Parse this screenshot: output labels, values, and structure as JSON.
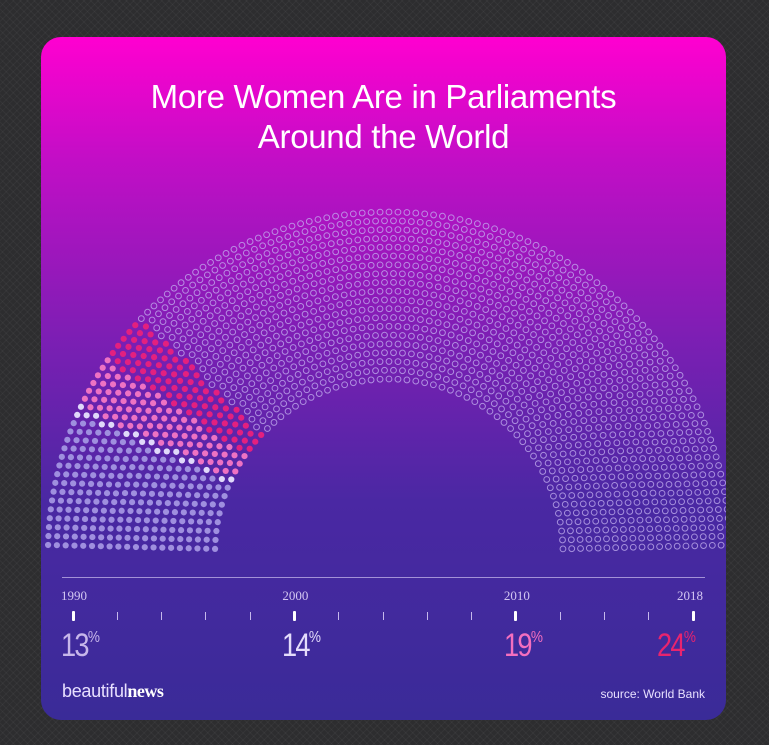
{
  "title_lines": [
    "More Women Are in Parliaments",
    "Around the World"
  ],
  "brand": {
    "light": "beautiful",
    "bold": "news"
  },
  "source": "source: World Bank",
  "chart_data": {
    "type": "parliament",
    "title": "More Women Are in Parliaments Around the World",
    "x": [
      1990,
      2000,
      2010,
      2018
    ],
    "values": [
      13,
      14,
      19,
      24
    ],
    "unit": "%",
    "tick_labels": [
      "1990",
      "2000",
      "2010",
      "2018"
    ],
    "timeline_range": [
      1990,
      2018
    ],
    "value_colors": [
      "#c7b7ea",
      "#e4dcfb",
      "#f46fbf",
      "#e8246e"
    ],
    "seat_colors": {
      "1990": "#9f8fdf",
      "2000": "#e0d8fa",
      "2010": "#ee72c3",
      "2018": "#e3207f",
      "empty": "#c4b2f0"
    },
    "grid": false,
    "legend": "none"
  }
}
